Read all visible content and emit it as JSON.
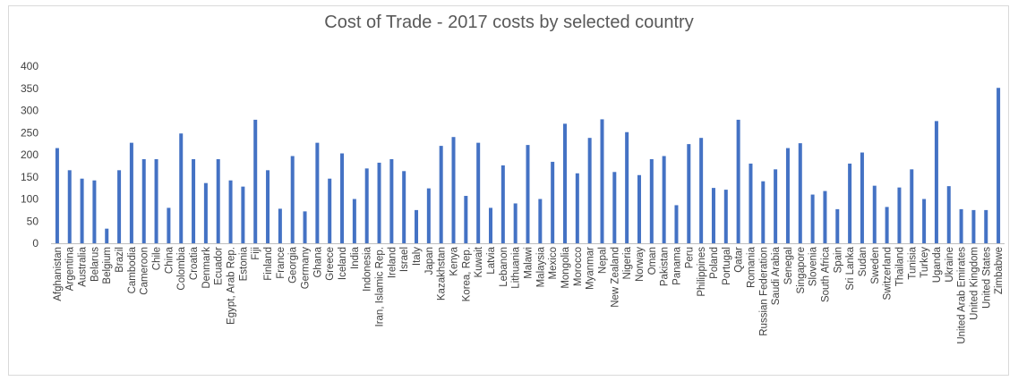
{
  "chart_data": {
    "type": "bar",
    "title": "Cost of Trade - 2017 costs by selected country",
    "xlabel": "",
    "ylabel": "",
    "ylim": [
      0,
      400
    ],
    "yticks": [
      0,
      50,
      100,
      150,
      200,
      250,
      300,
      350,
      400
    ],
    "grid": false,
    "bar_color": "#4472c4",
    "categories": [
      "Afghanistan",
      "Argentina",
      "Australia",
      "Belarus",
      "Belgium",
      "Brazil",
      "Cambodia",
      "Cameroon",
      "Chile",
      "China",
      "Colombia",
      "Croatia",
      "Denmark",
      "Ecuador",
      "Egypt, Arab Rep.",
      "Estonia",
      "Fiji",
      "Finland",
      "France",
      "Georgia",
      "Germany",
      "Ghana",
      "Greece",
      "Iceland",
      "India",
      "Indonesia",
      "Iran, Islamic Rep.",
      "Ireland",
      "Israel",
      "Italy",
      "Japan",
      "Kazakhstan",
      "Kenya",
      "Korea, Rep.",
      "Kuwait",
      "Latvia",
      "Lebanon",
      "Lithuania",
      "Malawi",
      "Malaysia",
      "Mexico",
      "Mongolia",
      "Morocco",
      "Myanmar",
      "Nepal",
      "New Zealand",
      "Nigeria",
      "Norway",
      "Oman",
      "Pakistan",
      "Panama",
      "Peru",
      "Philippines",
      "Poland",
      "Portugal",
      "Qatar",
      "Romania",
      "Russian Federation",
      "Saudi Arabia",
      "Senegal",
      "Singapore",
      "Slovenia",
      "South Africa",
      "Spain",
      "Sri Lanka",
      "Sudan",
      "Sweden",
      "Switzerland",
      "Thailand",
      "Tunisia",
      "Turkey",
      "Uganda",
      "Ukraine",
      "United Arab Emirates",
      "United Kingdom",
      "United States",
      "Zimbabwe"
    ],
    "values": [
      215,
      165,
      146,
      142,
      33,
      165,
      227,
      190,
      190,
      80,
      248,
      190,
      136,
      190,
      142,
      128,
      279,
      165,
      78,
      197,
      72,
      227,
      146,
      203,
      100,
      169,
      182,
      190,
      163,
      75,
      124,
      220,
      240,
      107,
      227,
      80,
      176,
      90,
      222,
      100,
      184,
      270,
      158,
      238,
      280,
      161,
      251,
      154,
      190,
      197,
      86,
      224,
      238,
      125,
      121,
      279,
      180,
      140,
      167,
      215,
      226,
      110,
      118,
      77,
      180,
      205,
      130,
      82,
      126,
      167,
      100,
      276,
      129,
      77,
      75,
      75,
      351
    ]
  }
}
